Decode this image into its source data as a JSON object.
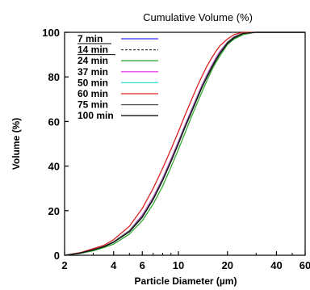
{
  "chart_data": {
    "type": "line",
    "title": "Cumulative Volume (%)",
    "xlabel": "Particle Diameter (µm)",
    "ylabel": "Volume (%)",
    "xscale": "log",
    "xlim": [
      2,
      60
    ],
    "ylim": [
      0,
      100
    ],
    "xticks": [
      {
        "v": 2,
        "label": "2"
      },
      {
        "v": 4,
        "label": "4"
      },
      {
        "v": 6,
        "label": "6"
      },
      {
        "v": 10,
        "label": "10"
      },
      {
        "v": 20,
        "label": "20"
      },
      {
        "v": 40,
        "label": "40"
      },
      {
        "v": 60,
        "label": "60"
      }
    ],
    "yticks": [
      {
        "v": 0,
        "label": "0"
      },
      {
        "v": 20,
        "label": "20"
      },
      {
        "v": 40,
        "label": "40"
      },
      {
        "v": 60,
        "label": "60"
      },
      {
        "v": 80,
        "label": "80"
      },
      {
        "v": 100,
        "label": "100"
      }
    ],
    "grid": false,
    "legend_position": "top-left",
    "x": [
      2,
      2.5,
      3,
      3.5,
      4,
      5,
      6,
      7,
      8,
      9,
      10,
      11,
      12,
      13,
      14,
      15,
      16,
      17,
      18,
      20,
      22,
      25,
      30,
      40,
      60
    ],
    "series": [
      {
        "name": "7 min",
        "color": "#3333ff",
        "dash": "solid",
        "values": [
          0,
          1.0,
          2.5,
          4.0,
          6.0,
          11.0,
          18.0,
          26.0,
          34.5,
          43.0,
          51.0,
          58.5,
          65.0,
          71.0,
          76.5,
          81.0,
          85.0,
          88.5,
          91.5,
          95.5,
          98.0,
          99.5,
          100,
          100,
          100
        ]
      },
      {
        "name": "14 min",
        "color": "#444444",
        "dash": "dash",
        "values": [
          0,
          1.0,
          2.5,
          4.0,
          6.0,
          11.0,
          17.5,
          25.5,
          34.0,
          42.5,
          50.5,
          58.0,
          64.5,
          70.5,
          76.0,
          80.5,
          84.5,
          88.0,
          91.0,
          95.5,
          98.0,
          99.5,
          100,
          100,
          100
        ]
      },
      {
        "name": "24 min",
        "color": "#33aa33",
        "dash": "solid",
        "values": [
          0,
          0.8,
          2.0,
          3.5,
          5.0,
          9.5,
          15.5,
          23.0,
          31.0,
          39.5,
          47.5,
          55.0,
          62.0,
          68.0,
          73.5,
          78.5,
          83.0,
          86.5,
          89.5,
          94.5,
          97.0,
          99.0,
          100,
          100,
          100
        ]
      },
      {
        "name": "37 min",
        "color": "#ee44ee",
        "dash": "solid",
        "values": [
          0,
          1.0,
          2.5,
          4.0,
          6.0,
          11.0,
          18.0,
          26.0,
          34.5,
          43.0,
          51.0,
          58.5,
          65.0,
          71.0,
          76.5,
          81.0,
          85.0,
          88.5,
          91.5,
          95.5,
          98.0,
          99.5,
          100,
          100,
          100
        ]
      },
      {
        "name": "50 min",
        "color": "#33dddd",
        "dash": "solid",
        "values": [
          0,
          1.0,
          2.5,
          4.0,
          6.0,
          11.0,
          17.5,
          25.5,
          34.0,
          42.5,
          50.5,
          58.0,
          64.5,
          70.5,
          76.0,
          80.5,
          84.5,
          88.0,
          91.0,
          95.5,
          98.0,
          99.5,
          100,
          100,
          100
        ]
      },
      {
        "name": "60 min",
        "color": "#dd2222",
        "dash": "solid",
        "values": [
          0,
          1.2,
          3.0,
          4.5,
          7.0,
          13.0,
          21.0,
          30.0,
          39.0,
          47.5,
          55.5,
          63.0,
          69.5,
          75.5,
          80.5,
          85.0,
          88.5,
          91.5,
          94.0,
          97.0,
          99.0,
          100,
          100,
          100,
          100
        ]
      },
      {
        "name": "75 min",
        "color": "#555555",
        "dash": "solid",
        "values": [
          0,
          1.0,
          2.5,
          4.0,
          6.0,
          11.0,
          17.5,
          25.5,
          34.0,
          42.5,
          50.5,
          58.0,
          64.5,
          70.5,
          76.0,
          80.5,
          84.5,
          88.0,
          91.0,
          95.5,
          98.0,
          99.5,
          100,
          100,
          100
        ]
      },
      {
        "name": "100 min",
        "color": "#111111",
        "dash": "solid",
        "values": [
          0,
          1.0,
          2.4,
          3.9,
          5.8,
          10.5,
          17.0,
          25.0,
          33.5,
          42.0,
          50.0,
          57.5,
          64.0,
          70.0,
          75.5,
          80.0,
          84.0,
          87.5,
          90.5,
          95.0,
          97.5,
          99.5,
          100,
          100,
          100
        ]
      }
    ]
  }
}
